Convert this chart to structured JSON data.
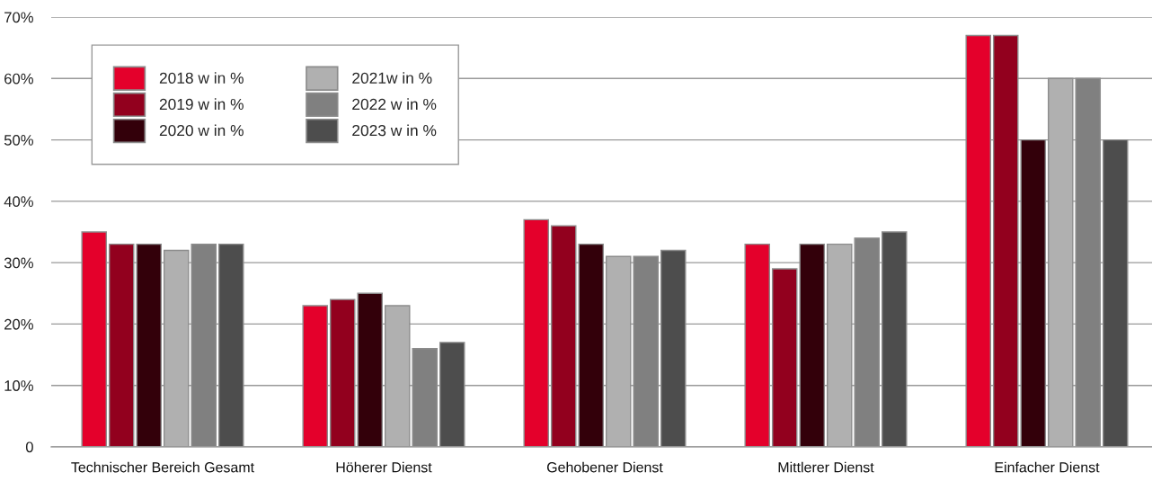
{
  "chart_data": {
    "type": "bar",
    "categories": [
      "Technischer Bereich Gesamt",
      "Höherer Dienst",
      "Gehobener Dienst",
      "Mittlerer Dienst",
      "Einfacher Dienst"
    ],
    "series": [
      {
        "name": "2018 w in %",
        "color": "#e4002b",
        "values": [
          35,
          23,
          37,
          33,
          67
        ]
      },
      {
        "name": "2019 w in %",
        "color": "#92001e",
        "values": [
          33,
          24,
          36,
          29,
          67
        ]
      },
      {
        "name": "2020 w in %",
        "color": "#33000a",
        "values": [
          33,
          25,
          33,
          33,
          50
        ]
      },
      {
        "name": "2021w in %",
        "color": "#b0b0b0",
        "values": [
          32,
          23,
          31,
          33,
          60
        ]
      },
      {
        "name": "2022 w in %",
        "color": "#808080",
        "values": [
          33,
          16,
          31,
          34,
          60
        ]
      },
      {
        "name": "2023 w in %",
        "color": "#4d4d4d",
        "values": [
          33,
          17,
          32,
          35,
          50
        ]
      }
    ],
    "ylim": [
      0,
      70
    ],
    "yticks": [
      0,
      {
        "value": 10,
        "label": "10%"
      },
      {
        "value": 20,
        "label": "20%"
      },
      {
        "value": 30,
        "label": "30%"
      },
      {
        "value": 40,
        "label": "40%"
      },
      {
        "value": 50,
        "label": "50%"
      },
      {
        "value": 60,
        "label": "60%"
      },
      {
        "value": 70,
        "label": "70%"
      }
    ],
    "grid": "y",
    "legend": "top left"
  }
}
